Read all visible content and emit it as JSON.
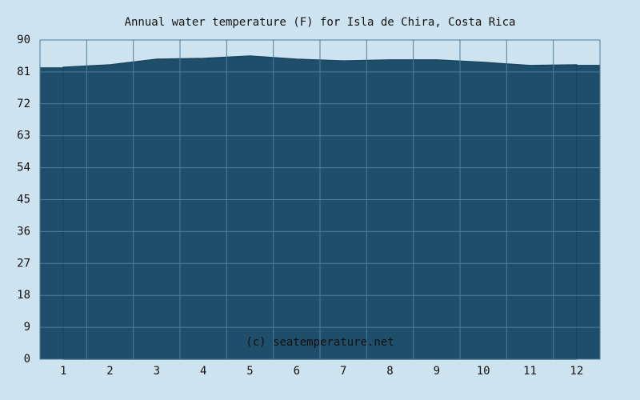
{
  "chart_data": {
    "type": "area",
    "title": "Annual water temperature (F) for Isla de Chira, Costa Rica",
    "categories": [
      "1",
      "2",
      "3",
      "4",
      "5",
      "6",
      "7",
      "8",
      "9",
      "10",
      "11",
      "12"
    ],
    "values": [
      82.3,
      83.0,
      84.6,
      84.8,
      85.5,
      84.6,
      84.1,
      84.4,
      84.4,
      83.7,
      82.8,
      83.0
    ],
    "color": "#1f4e6b",
    "ylim": [
      0,
      90
    ],
    "yticks": [
      0,
      9,
      18,
      27,
      36,
      45,
      54,
      63,
      72,
      81,
      90
    ],
    "grid": true,
    "watermark": "(c) seatemperature.net"
  }
}
